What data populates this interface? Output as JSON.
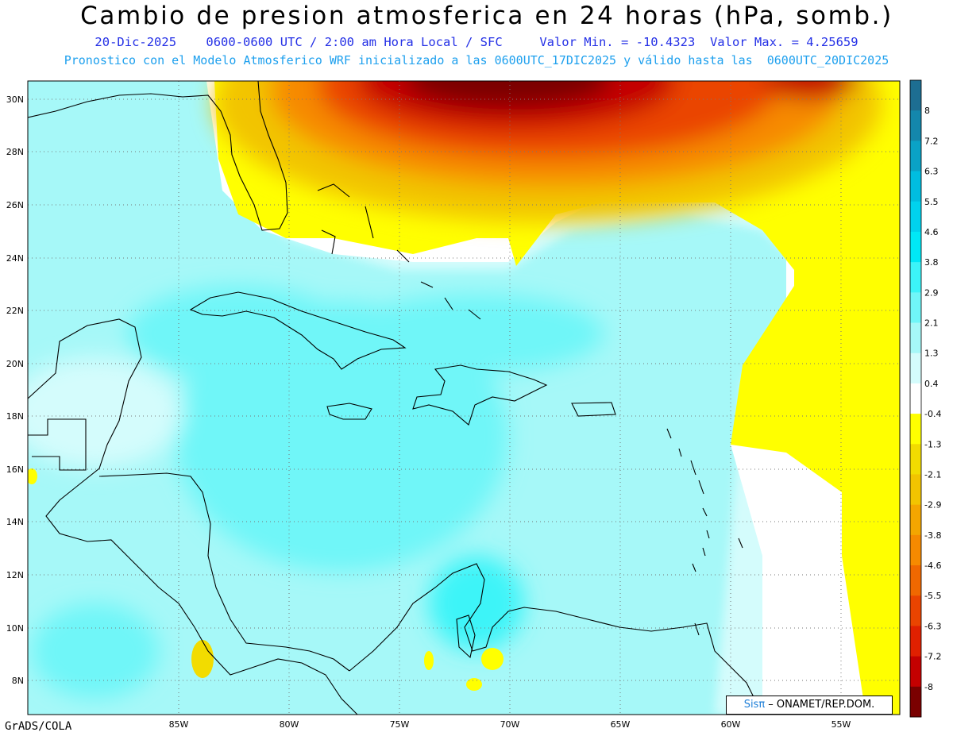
{
  "title": "Cambio de presion atmosferica en 24 horas (hPa, somb.)",
  "subtitle_line1": "20-Dic-2025    0600-0600 UTC / 2:00 am Hora Local / SFC     Valor Min. = -10.4323  Valor Max. = 4.25659",
  "subtitle_line2": "Pronostico con el Modelo Atmosferico WRF inicializado a las 0600UTC_17DIC2025 y válido hasta las  0600UTC_20DIC2025",
  "footer_left": "GrADS/COLA",
  "credit": {
    "logo": "Sisπ",
    "text": " – ONAMET/REP.DOM."
  },
  "axes": {
    "lon_labels": [
      "85W",
      "80W",
      "75W",
      "70W",
      "65W",
      "60W",
      "55W"
    ],
    "lat_labels": [
      "30N",
      "28N",
      "26N",
      "24N",
      "22N",
      "20N",
      "18N",
      "16N",
      "14N",
      "12N",
      "10N",
      "8N"
    ]
  },
  "colorbar": {
    "labels": [
      "8",
      "7.2",
      "6.3",
      "5.5",
      "4.6",
      "3.8",
      "2.9",
      "2.1",
      "1.3",
      "0.4",
      "-0.4",
      "-1.3",
      "-2.1",
      "-2.9",
      "-3.8",
      "-4.6",
      "-5.5",
      "-6.3",
      "-7.2",
      "-8"
    ],
    "colors": [
      "#1d6e92",
      "#1487ac",
      "#0aa2c6",
      "#00bde0",
      "#00d2ee",
      "#00e8f6",
      "#3cf4f8",
      "#70f6f8",
      "#a6f8f8",
      "#d4fcfc",
      "#ffffff",
      "#ffff00",
      "#f2dc00",
      "#f2c400",
      "#f4a600",
      "#f68a00",
      "#f06800",
      "#ea4400",
      "#e02000",
      "#c40000",
      "#7a0000"
    ]
  }
}
